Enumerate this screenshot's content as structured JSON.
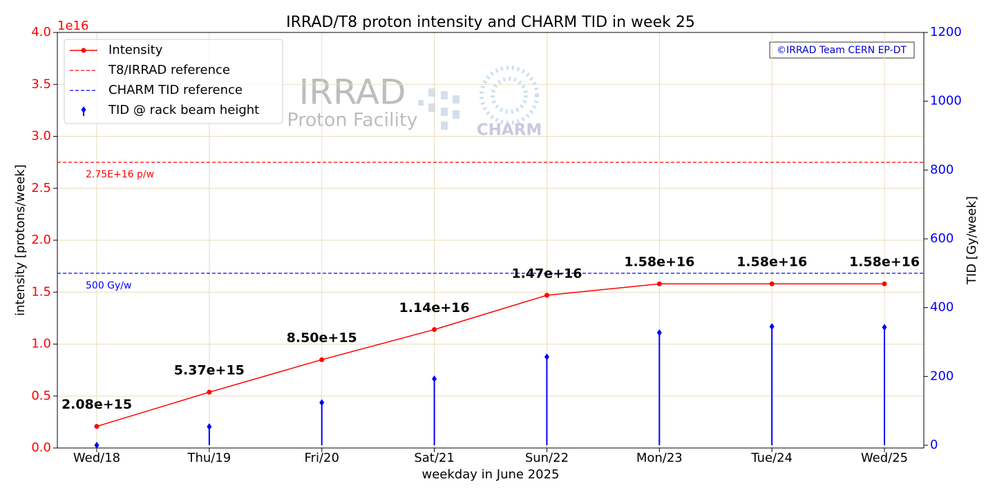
{
  "chart_data": {
    "type": "line",
    "title": "IRRAD/T8 proton intensity and CHARM TID in week 25",
    "xlabel": "weekday in June 2025",
    "ylabel": "intensity [protons/week]",
    "y2label": "TID [Gy/week]",
    "y_offset_label": "1e16",
    "categories": [
      "Wed/18",
      "Thu/19",
      "Fri/20",
      "Sat/21",
      "Sun/22",
      "Mon/23",
      "Tue/24",
      "Wed/25"
    ],
    "series": [
      {
        "name": "Intensity",
        "type": "line",
        "color": "#ff0000",
        "values": [
          2080000000000000.0,
          5370000000000000.0,
          8500000000000000.0,
          1.14e+16,
          1.47e+16,
          1.58e+16,
          1.58e+16,
          1.58e+16
        ],
        "value_labels": [
          "2.08e+15",
          "5.37e+15",
          "8.50e+15",
          "1.14e+16",
          "1.47e+16",
          "1.58e+16",
          "1.58e+16",
          "1.58e+16"
        ]
      },
      {
        "name": "TID @ rack beam height",
        "type": "stem",
        "color": "#0000ff",
        "axis": "y2",
        "values": [
          0,
          54,
          124,
          193,
          257,
          327,
          345,
          343
        ]
      }
    ],
    "reference_lines": [
      {
        "name": "T8/IRRAD reference",
        "color": "#ff0000",
        "value": 2.75e+16,
        "label": "2.75E+16 p/w"
      },
      {
        "name": "CHARM TID reference",
        "color": "#0000ff",
        "axis": "y2",
        "value": 500,
        "label": "500 Gy/w"
      }
    ],
    "ylim": [
      0,
      4e+16
    ],
    "yticks": [
      {
        "value": 0,
        "label": "0.0"
      },
      {
        "value": 5000000000000000.0,
        "label": "0.5"
      },
      {
        "value": 1e+16,
        "label": "1.0"
      },
      {
        "value": 1.5e+16,
        "label": "1.5"
      },
      {
        "value": 2e+16,
        "label": "2.0"
      },
      {
        "value": 2.5e+16,
        "label": "2.5"
      },
      {
        "value": 3e+16,
        "label": "3.0"
      },
      {
        "value": 3.5e+16,
        "label": "3.5"
      },
      {
        "value": 4e+16,
        "label": "4.0"
      }
    ],
    "y2lim": [
      -8,
      1200
    ],
    "y2ticks": [
      0,
      200,
      400,
      600,
      800,
      1000,
      1200
    ],
    "grid": true,
    "legend": "upper left",
    "copyright": "©IRRAD Team CERN EP-DT",
    "watermark": [
      "IRRAD",
      "Proton Facility",
      "CHARM"
    ]
  }
}
